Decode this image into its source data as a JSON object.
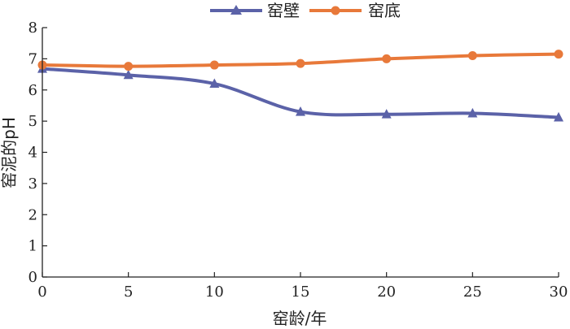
{
  "chart_data": {
    "type": "line",
    "xlabel": "窑龄/年",
    "ylabel": "窑泥的pH",
    "xlim": [
      0,
      30
    ],
    "ylim": [
      0,
      8
    ],
    "xticks": [
      "0",
      "5",
      "10",
      "15",
      "20",
      "25",
      "30"
    ],
    "yticks": [
      "0",
      "1",
      "2",
      "3",
      "4",
      "5",
      "6",
      "7",
      "8"
    ],
    "legend_position": "top-center",
    "grid": false,
    "x": [
      0,
      5,
      10,
      15,
      20,
      25,
      30
    ],
    "series": [
      {
        "name": "窑壁",
        "color": "#5b62a8",
        "marker": "triangle",
        "values": [
          6.68,
          6.48,
          6.2,
          5.3,
          5.22,
          5.25,
          5.12
        ]
      },
      {
        "name": "窑底",
        "color": "#e8793a",
        "marker": "circle",
        "values": [
          6.8,
          6.76,
          6.8,
          6.85,
          7.0,
          7.1,
          7.15
        ]
      }
    ]
  }
}
